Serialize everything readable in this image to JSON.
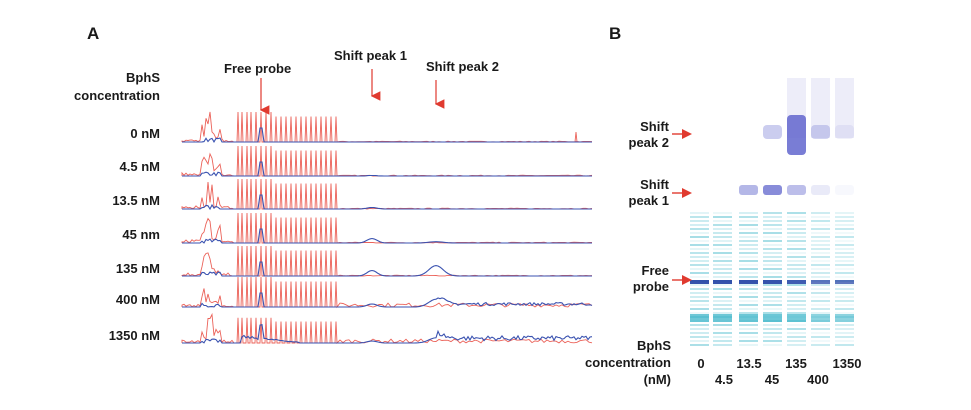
{
  "panel_a": {
    "letter": "A",
    "row_header_line1": "BphS",
    "row_header_line2": "concentration",
    "peak_labels": [
      "Free probe",
      "Shift peak 1",
      "Shift peak 2"
    ]
  },
  "panel_b": {
    "letter": "B",
    "labels": {
      "shift_peak_2": [
        "Shift",
        "peak 2"
      ],
      "shift_peak_1": [
        "Shift",
        "peak 1"
      ],
      "free_probe": [
        "Free",
        "probe"
      ]
    },
    "axis_title": [
      "BphS",
      "concentration",
      "(nM)"
    ],
    "lane_labels": [
      "0",
      "4.5",
      "13.5",
      "45",
      "135",
      "400",
      "1350"
    ]
  },
  "colors": {
    "red_trace": "#e8463c",
    "blue_trace": "#3a52b0",
    "arrow": "#e03a2f",
    "lane_teal": "#3fb6c9",
    "lane_blue": "#2a4aa8",
    "shift_band": "#6a6fd0"
  },
  "chart_data": [
    {
      "type": "line",
      "description_rows": [
        "0 nM",
        "4.5 nM",
        "13.5 nM",
        "45 nm",
        "135 nM",
        "400 nM",
        "1350 nM"
      ],
      "series": [
        {
          "name": "",
          "color": "red"
        },
        {
          "name": "",
          "color": "blue"
        }
      ],
      "rows": [
        {
          "label": "0 nM",
          "shift1": 0.0,
          "shift2": 0.0
        },
        {
          "label": "4.5 nM",
          "shift1": 0.05,
          "shift2": 0.0
        },
        {
          "label": "13.5 nM",
          "shift1": 0.15,
          "shift2": 0.0
        },
        {
          "label": "45 nm",
          "shift1": 0.45,
          "shift2": 0.1
        },
        {
          "label": "135 nM",
          "shift1": 0.55,
          "shift2": 0.8
        },
        {
          "label": "400 nM",
          "shift1": 0.3,
          "shift2": 0.6
        },
        {
          "label": "1350 nM",
          "shift1": 0.2,
          "shift2": 0.4
        }
      ],
      "annotations": [
        "Free probe",
        "Shift peak 1",
        "Shift peak 2"
      ]
    },
    {
      "type": "heatmap",
      "lanes": [
        "0",
        "4.5",
        "13.5",
        "45",
        "135",
        "400",
        "1350"
      ],
      "band_intensity": {
        "shift_peak_2": [
          0.0,
          0.0,
          0.0,
          0.35,
          0.9,
          0.3,
          0.1
        ],
        "shift_peak_1": [
          0.0,
          0.0,
          0.5,
          0.8,
          0.45,
          0.15,
          0.05
        ],
        "free_probe": [
          0.9,
          0.9,
          0.9,
          0.9,
          0.8,
          0.5,
          0.5
        ]
      }
    }
  ]
}
